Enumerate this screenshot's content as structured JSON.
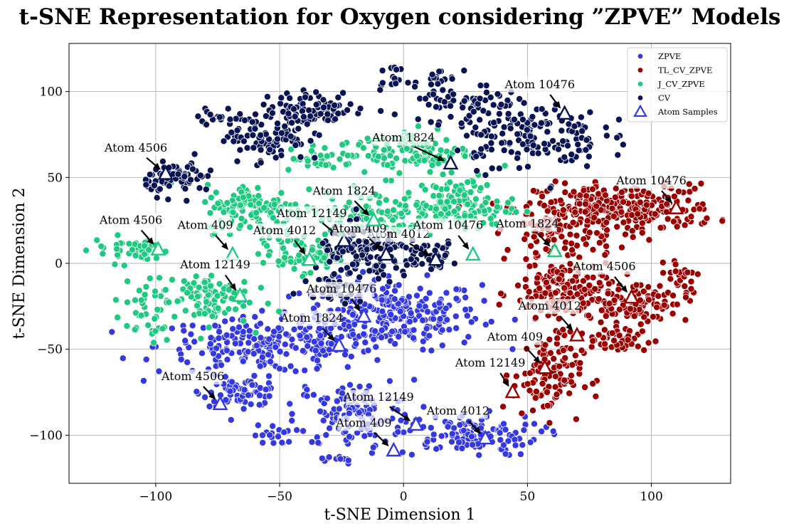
{
  "chart_data": {
    "type": "scatter",
    "title": "t-SNE Representation for Oxygen considering ”ZPVE” Models",
    "xlabel": "t-SNE Dimension 1",
    "ylabel": "t-SNE Dimension 2",
    "xlim": [
      -135,
      132
    ],
    "ylim": [
      -128,
      128
    ],
    "xticks": [
      -100,
      -50,
      0,
      50,
      100
    ],
    "yticks": [
      -100,
      -50,
      0,
      50,
      100
    ],
    "xtick_labels": [
      "−100",
      "−50",
      "0",
      "50",
      "100"
    ],
    "ytick_labels": [
      "−100",
      "−50",
      "0",
      "50",
      "100"
    ],
    "grid": true,
    "legend_position": "top-right",
    "series": [
      {
        "name": "ZPVE",
        "color": "#3338e0",
        "clusters": [
          {
            "x": -5,
            "y": -30,
            "sx": 18,
            "sy": 10,
            "n": 260
          },
          {
            "x": -55,
            "y": -48,
            "sx": 22,
            "sy": 8,
            "n": 220
          },
          {
            "x": -65,
            "y": -75,
            "sx": 8,
            "sy": 4,
            "n": 70
          },
          {
            "x": -20,
            "y": -88,
            "sx": 12,
            "sy": 10,
            "n": 120
          },
          {
            "x": 25,
            "y": -100,
            "sx": 15,
            "sy": 6,
            "n": 120
          },
          {
            "x": -52,
            "y": -100,
            "sx": 4,
            "sy": 3,
            "n": 20
          },
          {
            "x": -28,
            "y": -114,
            "sx": 3,
            "sy": 1,
            "n": 10
          }
        ]
      },
      {
        "name": "TL_CV_ZPVE",
        "color": "#990000",
        "clusters": [
          {
            "x": 90,
            "y": 32,
            "sx": 18,
            "sy": 7,
            "n": 260
          },
          {
            "x": 62,
            "y": 20,
            "sx": 10,
            "sy": 10,
            "n": 110
          },
          {
            "x": 65,
            "y": -18,
            "sx": 10,
            "sy": 10,
            "n": 160
          },
          {
            "x": 95,
            "y": -22,
            "sx": 10,
            "sy": 6,
            "n": 100
          },
          {
            "x": 58,
            "y": -65,
            "sx": 7,
            "sy": 12,
            "n": 110
          },
          {
            "x": 85,
            "y": -45,
            "sx": 8,
            "sy": 4,
            "n": 50
          },
          {
            "x": 112,
            "y": -5,
            "sx": 3,
            "sy": 3,
            "n": 20
          }
        ]
      },
      {
        "name": "J_CV_ZPVE",
        "color": "#1fc97f",
        "clusters": [
          {
            "x": 0,
            "y": 65,
            "sx": 14,
            "sy": 7,
            "n": 110
          },
          {
            "x": -60,
            "y": 32,
            "sx": 10,
            "sy": 7,
            "n": 120
          },
          {
            "x": -10,
            "y": 30,
            "sx": 20,
            "sy": 6,
            "n": 130
          },
          {
            "x": 25,
            "y": 35,
            "sx": 10,
            "sy": 8,
            "n": 90
          },
          {
            "x": -42,
            "y": 5,
            "sx": 8,
            "sy": 5,
            "n": 60
          },
          {
            "x": -80,
            "y": -20,
            "sx": 9,
            "sy": 8,
            "n": 90
          },
          {
            "x": -110,
            "y": 8,
            "sx": 8,
            "sy": 4,
            "n": 40
          },
          {
            "x": -105,
            "y": -28,
            "sx": 6,
            "sy": 10,
            "n": 40
          },
          {
            "x": -35,
            "y": 60,
            "sx": 5,
            "sy": 3,
            "n": 25
          }
        ]
      },
      {
        "name": "CV",
        "color": "#0a1452",
        "clusters": [
          {
            "x": -55,
            "y": 75,
            "sx": 8,
            "sy": 8,
            "n": 110
          },
          {
            "x": -35,
            "y": 90,
            "sx": 10,
            "sy": 5,
            "n": 80
          },
          {
            "x": 50,
            "y": 75,
            "sx": 15,
            "sy": 10,
            "n": 160
          },
          {
            "x": 25,
            "y": 92,
            "sx": 10,
            "sy": 6,
            "n": 60
          },
          {
            "x": -90,
            "y": 50,
            "sx": 7,
            "sy": 5,
            "n": 70
          },
          {
            "x": -15,
            "y": 5,
            "sx": 10,
            "sy": 8,
            "n": 120
          },
          {
            "x": 10,
            "y": 5,
            "sx": 6,
            "sy": 4,
            "n": 50
          },
          {
            "x": -28,
            "y": -12,
            "sx": 6,
            "sy": 5,
            "n": 40
          },
          {
            "x": -78,
            "y": 85,
            "sx": 4,
            "sy": 2,
            "n": 15
          },
          {
            "x": -5,
            "y": 108,
            "sx": 3,
            "sy": 3,
            "n": 15
          },
          {
            "x": 15,
            "y": 108,
            "sx": 4,
            "sy": 2,
            "n": 15
          }
        ]
      }
    ],
    "legend": [
      {
        "label": "ZPVE",
        "color": "#3338e0",
        "marker": "circle"
      },
      {
        "label": "TL_CV_ZPVE",
        "color": "#990000",
        "marker": "circle"
      },
      {
        "label": "J_CV_ZPVE",
        "color": "#1fc97f",
        "marker": "circle"
      },
      {
        "label": "CV",
        "color": "#0a1452",
        "marker": "circle"
      },
      {
        "label": "Atom Samples",
        "color": "#3338e0",
        "marker": "triangle"
      }
    ],
    "atom_samples": [
      {
        "label": "Atom 10476",
        "x": 65,
        "y": 87,
        "tx": 55,
        "ty": 102,
        "series": "CV"
      },
      {
        "label": "Atom 1824",
        "x": 19,
        "y": 58,
        "tx": 0,
        "ty": 71,
        "series": "CV"
      },
      {
        "label": "Atom 4506",
        "x": -96,
        "y": 52,
        "tx": -108,
        "ty": 65,
        "series": "CV"
      },
      {
        "label": "Atom 12149",
        "x": -24,
        "y": 13,
        "tx": -37,
        "ty": 27,
        "series": "CV"
      },
      {
        "label": "Atom 4012",
        "x": 13,
        "y": 2,
        "tx": -2,
        "ty": 15,
        "series": "CV"
      },
      {
        "label": "Atom 409",
        "x": -7,
        "y": 5,
        "tx": -18,
        "ty": 18,
        "series": "CV"
      },
      {
        "label": "Atom 10476",
        "x": -16,
        "y": -31,
        "tx": -25,
        "ty": -17,
        "series": "ZPVE"
      },
      {
        "label": "Atom 1824",
        "x": -26,
        "y": -48,
        "tx": -37,
        "ty": -34,
        "series": "ZPVE"
      },
      {
        "label": "Atom 4506",
        "x": -74,
        "y": -82,
        "tx": -85,
        "ty": -68,
        "series": "ZPVE"
      },
      {
        "label": "Atom 12149",
        "x": 5,
        "y": -94,
        "tx": -10,
        "ty": -80,
        "series": "ZPVE"
      },
      {
        "label": "Atom 409",
        "x": -4,
        "y": -109,
        "tx": -16,
        "ty": -95,
        "series": "ZPVE"
      },
      {
        "label": "Atom 4012",
        "x": 33,
        "y": -102,
        "tx": 22,
        "ty": -88,
        "series": "ZPVE"
      },
      {
        "label": "Atom 1824",
        "x": 61,
        "y": 7,
        "tx": 50,
        "ty": 21,
        "series": "J_CV_ZPVE"
      },
      {
        "label": "Atom 1824",
        "x": -12,
        "y": 25,
        "tx": -24,
        "ty": 40,
        "series": "J_CV_ZPVE"
      },
      {
        "label": "Atom 10476",
        "x": 28,
        "y": 5,
        "tx": 18,
        "ty": 20,
        "series": "J_CV_ZPVE"
      },
      {
        "label": "Atom 4506",
        "x": -99,
        "y": 8,
        "tx": -110,
        "ty": 23,
        "series": "J_CV_ZPVE"
      },
      {
        "label": "Atom 409",
        "x": -69,
        "y": 5,
        "tx": -80,
        "ty": 20,
        "series": "J_CV_ZPVE"
      },
      {
        "label": "Atom 4012",
        "x": -38,
        "y": 2,
        "tx": -48,
        "ty": 17,
        "series": "J_CV_ZPVE"
      },
      {
        "label": "Atom 12149",
        "x": -66,
        "y": -19,
        "tx": -76,
        "ty": -3,
        "series": "J_CV_ZPVE"
      },
      {
        "label": "Atom 10476",
        "x": 110,
        "y": 32,
        "tx": 100,
        "ty": 46,
        "series": "TL_CV_ZPVE"
      },
      {
        "label": "Atom 4506",
        "x": 92,
        "y": -20,
        "tx": 81,
        "ty": -4,
        "series": "TL_CV_ZPVE"
      },
      {
        "label": "Atom 4012",
        "x": 70,
        "y": -42,
        "tx": 59,
        "ty": -27,
        "series": "TL_CV_ZPVE"
      },
      {
        "label": "Atom 409",
        "x": 57,
        "y": -61,
        "tx": 45,
        "ty": -45,
        "series": "TL_CV_ZPVE"
      },
      {
        "label": "Atom 12149",
        "x": 44,
        "y": -75,
        "tx": 35,
        "ty": -60,
        "series": "TL_CV_ZPVE"
      }
    ]
  }
}
